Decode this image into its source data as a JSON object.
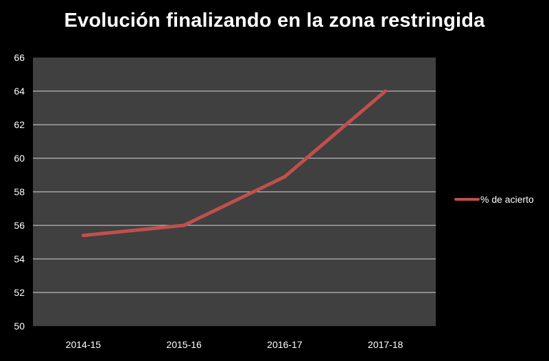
{
  "chart_data": {
    "type": "line",
    "title": "Evolución finalizando en la zona restringida",
    "categories": [
      "2014-15",
      "2015-16",
      "2016-17",
      "2017-18"
    ],
    "series": [
      {
        "name": "% de acierto",
        "values": [
          55.4,
          56.0,
          58.9,
          64.0
        ],
        "color": "#c0504d"
      }
    ],
    "ylim": [
      50,
      66
    ],
    "yticks": [
      50,
      52,
      54,
      56,
      58,
      60,
      62,
      64,
      66
    ],
    "grid": true,
    "legend_position": "right",
    "plot_background": "#404040",
    "gridline_color": "#d9d9d9"
  }
}
